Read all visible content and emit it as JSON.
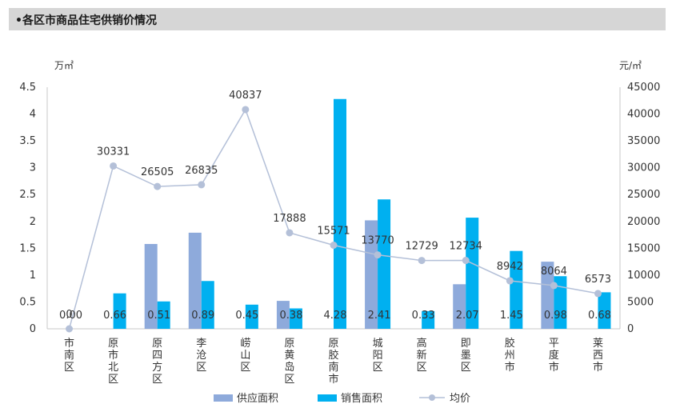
{
  "header": {
    "title": "•各区市商品住宅供销价情况"
  },
  "chart_data": {
    "type": "bar",
    "title": "",
    "left_unit": "万㎡",
    "right_unit": "元/㎡",
    "categories": [
      "市南区",
      "原市北区",
      "原四方区",
      "李沧区",
      "崂山区",
      "原黄岛区",
      "原胶南市",
      "城阳区",
      "高新区",
      "即墨区",
      "胶州市",
      "平度市",
      "莱西市"
    ],
    "series": [
      {
        "name": "供应面积",
        "type": "bar",
        "axis": "left",
        "color": "#8eaadb",
        "values": [
          0,
          0,
          1.58,
          1.79,
          0,
          0.52,
          0,
          2.02,
          0,
          0.83,
          0,
          1.25,
          0
        ]
      },
      {
        "name": "销售面积",
        "type": "bar",
        "axis": "left",
        "color": "#00b0f0",
        "values": [
          0.0,
          0.66,
          0.51,
          0.89,
          0.45,
          0.38,
          4.28,
          2.41,
          0.33,
          2.07,
          1.45,
          0.98,
          0.68
        ],
        "labels": [
          "0.00",
          "0.66",
          "0.51",
          "0.89",
          "0.45",
          "0.38",
          "4.28",
          "2.41",
          "0.33",
          "2.07",
          "1.45",
          "0.98",
          "0.68"
        ]
      },
      {
        "name": "均价",
        "type": "line",
        "axis": "right",
        "color": "#b4c0d8",
        "values": [
          0,
          30331,
          26505,
          26835,
          40837,
          17888,
          15571,
          13770,
          12729,
          12734,
          8942,
          8064,
          6573
        ],
        "labels": [
          "0",
          "30331",
          "26505",
          "26835",
          "40837",
          "17888",
          "15571",
          "13770",
          "12729",
          "12734",
          "8942",
          "8064",
          "6573"
        ]
      }
    ],
    "y_left": {
      "min": 0,
      "max": 4.5,
      "ticks": [
        "0",
        "0.5",
        "1",
        "1.5",
        "2",
        "2.5",
        "3",
        "3.5",
        "4",
        "4.5"
      ]
    },
    "y_right": {
      "min": 0,
      "max": 45000,
      "ticks": [
        "0",
        "5000",
        "10000",
        "15000",
        "20000",
        "25000",
        "30000",
        "35000",
        "40000",
        "45000"
      ]
    },
    "grid": false,
    "legend": "bottom"
  }
}
